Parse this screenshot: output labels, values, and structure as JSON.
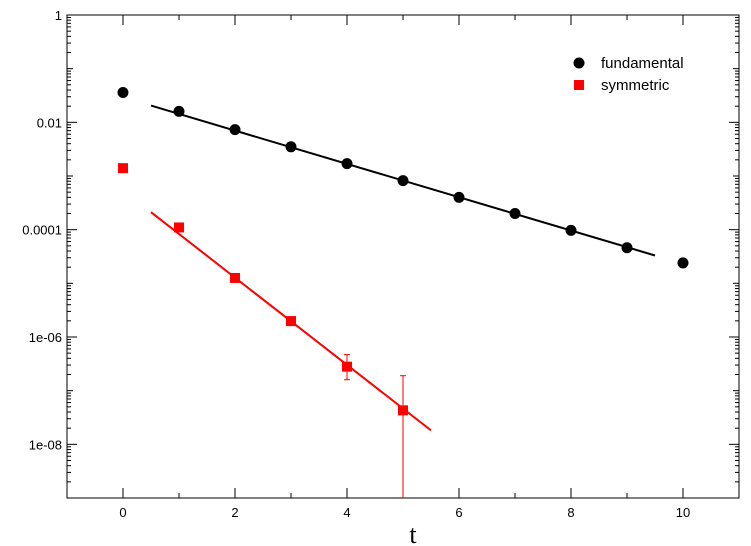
{
  "chart_data": {
    "type": "scatter",
    "title": "",
    "xlabel": "t",
    "ylabel": "",
    "xlim": [
      -1,
      11
    ],
    "ylim": [
      1e-09,
      1
    ],
    "yscale": "log",
    "grid": false,
    "legend_position": "top-right",
    "x_ticks": [
      0,
      2,
      4,
      6,
      8,
      10
    ],
    "x_tick_labels": [
      "0",
      "2",
      "4",
      "6",
      "8",
      "10"
    ],
    "y_ticks": [
      1,
      0.01,
      0.0001,
      1e-06,
      1e-08
    ],
    "y_tick_labels": [
      "1",
      "0.01",
      "0.0001",
      "1e-06",
      "1e-08"
    ],
    "series": [
      {
        "name": "fundamental",
        "color": "#000000",
        "marker": "circle",
        "x": [
          0,
          1,
          2,
          3,
          4,
          5,
          6,
          7,
          8,
          9,
          10
        ],
        "y": [
          0.036,
          0.016,
          0.0073,
          0.0035,
          0.0017,
          0.00082,
          0.0004,
          0.0002,
          9.7e-05,
          4.6e-05,
          2.4e-05
        ],
        "fit": {
          "x": [
            0.5,
            9.5
          ],
          "y": [
            0.0205,
            3.3e-05
          ]
        }
      },
      {
        "name": "symmetric",
        "color": "#ff0000",
        "marker": "square",
        "x": [
          0,
          1,
          2,
          3,
          4,
          5
        ],
        "y": [
          0.0014,
          0.00011,
          1.26e-05,
          1.98e-06,
          2.8e-07,
          4.3e-08
        ],
        "yerr_low": [
          0,
          0,
          0,
          0,
          1.2e-07,
          4.2e-08
        ],
        "yerr_high": [
          0,
          0,
          0,
          0,
          1.9e-07,
          1.47e-07
        ],
        "fit": {
          "x": [
            0.5,
            5.5
          ],
          "y": [
            0.000212,
            1.82e-08
          ]
        }
      }
    ]
  }
}
